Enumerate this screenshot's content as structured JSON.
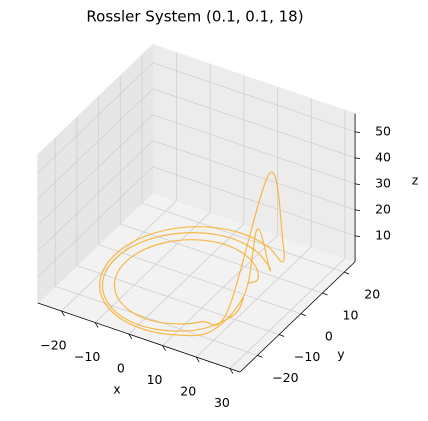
{
  "chart_data": {
    "type": "line3d",
    "title": "Rossler System (0.1, 0.1, 18)",
    "xlabel": "x",
    "ylabel": "y",
    "zlabel": "z",
    "color": "#f8b133",
    "grid": true,
    "xlim": [
      -27,
      33
    ],
    "ylim": [
      -28,
      25
    ],
    "zlim": [
      0,
      57
    ],
    "xticks": [
      {
        "value": -20,
        "label": "−20"
      },
      {
        "value": -10,
        "label": "−10"
      },
      0,
      10,
      20,
      30
    ],
    "yticks": [
      {
        "value": -20,
        "label": "−20"
      },
      {
        "value": -10,
        "label": "−10"
      },
      0,
      10,
      20
    ],
    "zticks": [
      10,
      20,
      30,
      40,
      50
    ],
    "x": [
      19,
      17.6,
      13.7,
      7.9,
      1,
      -5.9,
      -11.7,
      -15.6,
      -17,
      -15.6,
      -11.7,
      -5.9,
      1,
      7.9,
      13.7,
      17.6,
      25,
      23.3,
      18.3,
      10.8,
      2,
      -6.8,
      -14.3,
      -19.3,
      -21,
      -19.3,
      -14.3,
      -6.8,
      2,
      10.8,
      18.3,
      23.3,
      22,
      20.4,
      15.8,
      9,
      1,
      -7,
      -13.8,
      -18.4,
      -20,
      -18.4,
      -13.8,
      -7,
      1,
      9,
      15.8,
      20.4,
      18
    ],
    "y": [
      -3,
      3.9,
      9.7,
      13.6,
      15,
      13.6,
      9.7,
      3.9,
      -3,
      -9.9,
      -15.7,
      -19.6,
      -21,
      -19.6,
      -15.7,
      -9.9,
      -2,
      6.8,
      14.3,
      19.3,
      21,
      19.3,
      14.3,
      6.8,
      -2,
      -10.8,
      -18.3,
      -23.3,
      -25,
      -23.3,
      -18.3,
      -10.8,
      -3,
      5,
      11.8,
      16.4,
      18,
      16.4,
      11.8,
      5,
      -3,
      -11,
      -17.8,
      -22.4,
      -24,
      -22.4,
      -17.8,
      -11,
      -3
    ],
    "z": [
      8,
      3,
      1,
      0.5,
      0.4,
      0.3,
      0.3,
      0.3,
      0.3,
      0.3,
      0.3,
      0.4,
      0.5,
      0.7,
      1,
      2,
      52,
      18,
      2,
      0.6,
      0.4,
      0.3,
      0.3,
      0.3,
      0.3,
      0.3,
      0.3,
      0.4,
      0.5,
      0.7,
      1.5,
      12,
      30,
      8,
      1.5,
      0.5,
      0.4,
      0.3,
      0.3,
      0.3,
      0.3,
      0.3,
      0.3,
      0.4,
      0.5,
      0.7,
      1,
      3,
      2
    ]
  }
}
